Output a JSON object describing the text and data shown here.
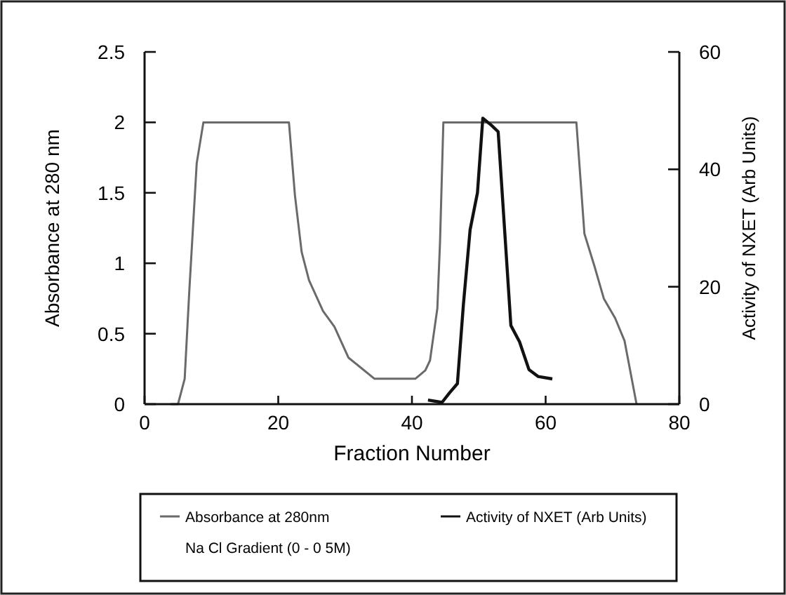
{
  "chart_data": {
    "type": "line",
    "xlabel": "Fraction Number",
    "ylabel": "Absorbance at 280 nm",
    "y2label": "Activity of NXET (Arb Units)",
    "xlim": [
      0,
      80
    ],
    "xticks": [
      0,
      20,
      40,
      60,
      80
    ],
    "ylim": [
      0,
      2.5
    ],
    "yticks": [
      0,
      0.5,
      1,
      1.5,
      2,
      2.5
    ],
    "y2lim": [
      0,
      60
    ],
    "y2ticks": [
      0,
      20,
      40,
      60
    ],
    "legend": "bottom",
    "grid": false,
    "line_style": "solid",
    "annotations": [
      "Na Cl Gradient (0 - 0 5M)"
    ],
    "series": [
      {
        "name": "Absorbance at 280nm",
        "color": "#6a6a6a",
        "x": [
          3.9,
          5.0,
          6.0,
          6.7,
          7.8,
          8.8,
          21.6,
          22.5,
          23.5,
          24.6,
          26.7,
          28.4,
          30.5,
          34.4,
          40.5,
          42.0,
          42.7,
          43.8,
          44.2,
          44.7,
          64.6,
          65.8,
          67.3,
          68.7,
          70.4,
          71.8,
          73.6
        ],
        "values": [
          0,
          0,
          0.18,
          0.81,
          1.71,
          2,
          2,
          1.48,
          1.08,
          0.88,
          0.66,
          0.55,
          0.33,
          0.18,
          0.18,
          0.24,
          0.31,
          0.68,
          1.15,
          2,
          2,
          1.21,
          0.98,
          0.75,
          0.61,
          0.45,
          0
        ]
      },
      {
        "name": "Activity of NXET (Arb Units)",
        "color": "#111111",
        "axis": "y2",
        "x": [
          42.4,
          44.5,
          45.6,
          46.8,
          47.7,
          48.7,
          49.8,
          50.6,
          51.9,
          52.9,
          54.0,
          54.8,
          56.1,
          57.5,
          58.9,
          61.0
        ],
        "values": [
          0.7,
          0.3,
          1.9,
          3.5,
          17,
          29.7,
          36,
          48.7,
          47.5,
          46.4,
          27.3,
          13.4,
          10.6,
          5.9,
          4.7,
          4.3
        ]
      }
    ]
  }
}
